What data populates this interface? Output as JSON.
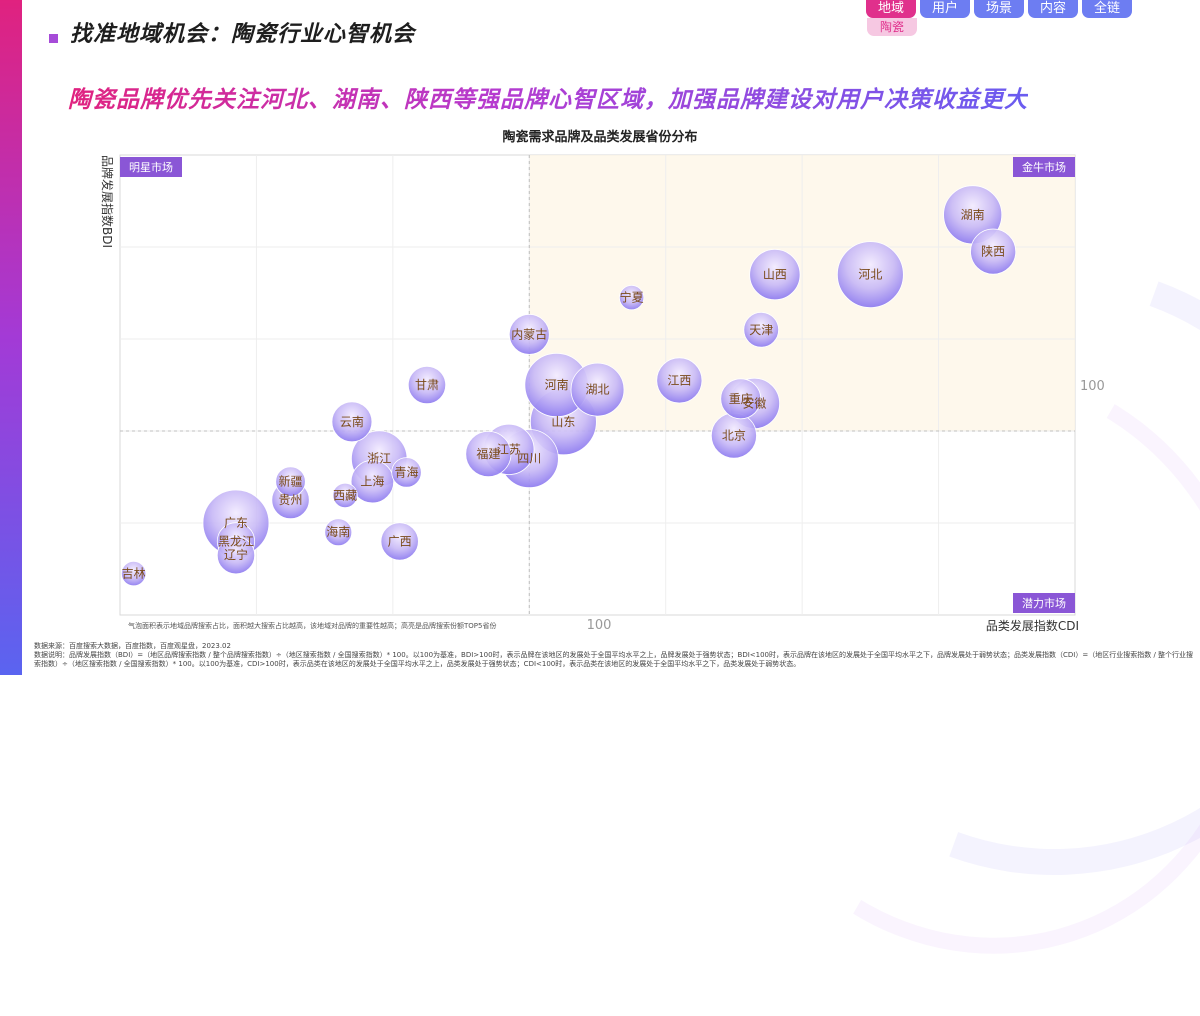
{
  "header": {
    "title": "找准地域机会：陶瓷行业心智机会",
    "headline": "陶瓷品牌优先关注河北、湖南、陕西等强品牌心智区域，加强品牌建设对用户决策收益更大"
  },
  "nav": {
    "tabs": [
      {
        "label": "地域",
        "active": true
      },
      {
        "label": "用户",
        "active": false
      },
      {
        "label": "场景",
        "active": false
      },
      {
        "label": "内容",
        "active": false
      },
      {
        "label": "全链",
        "active": false
      }
    ],
    "sub_label": "陶瓷"
  },
  "chart_data": {
    "type": "scatter",
    "title": "陶瓷需求品牌及品类发展省份分布",
    "xlabel": "品类发展指数CDI",
    "ylabel": "品牌发展指数BDI",
    "x_ref": 100,
    "y_ref": 100,
    "x_ref_label": "100",
    "y_ref_label": "100",
    "quadrants": {
      "top_left": "明星市场",
      "top_right": "金牛市场",
      "bottom_right": "潜力市场"
    },
    "grid": true,
    "points": [
      {
        "name": "湖南",
        "x": 132.5,
        "y": 123.5,
        "size": 0.85
      },
      {
        "name": "陕西",
        "x": 134,
        "y": 119.5,
        "size": 0.6
      },
      {
        "name": "河北",
        "x": 125,
        "y": 117,
        "size": 1.0
      },
      {
        "name": "山西",
        "x": 118,
        "y": 117,
        "size": 0.7
      },
      {
        "name": "宁夏",
        "x": 107.5,
        "y": 114.5,
        "size": 0.2
      },
      {
        "name": "天津",
        "x": 117,
        "y": 111,
        "size": 0.4
      },
      {
        "name": "内蒙古",
        "x": 100,
        "y": 110.5,
        "size": 0.5
      },
      {
        "name": "江西",
        "x": 111,
        "y": 105.5,
        "size": 0.6
      },
      {
        "name": "河南",
        "x": 102,
        "y": 105,
        "size": 0.95
      },
      {
        "name": "湖北",
        "x": 105,
        "y": 104.5,
        "size": 0.75
      },
      {
        "name": "甘肃",
        "x": 92.5,
        "y": 105,
        "size": 0.45
      },
      {
        "name": "重庆",
        "x": 115.5,
        "y": 103.5,
        "size": 0.5
      },
      {
        "name": "安徽",
        "x": 116.5,
        "y": 103,
        "size": 0.7
      },
      {
        "name": "山东",
        "x": 102.5,
        "y": 101,
        "size": 1.0
      },
      {
        "name": "云南",
        "x": 87,
        "y": 101,
        "size": 0.5
      },
      {
        "name": "北京",
        "x": 115,
        "y": 99.5,
        "size": 0.6
      },
      {
        "name": "江苏",
        "x": 98.5,
        "y": 98,
        "size": 0.7
      },
      {
        "name": "福建",
        "x": 97,
        "y": 97.5,
        "size": 0.6
      },
      {
        "name": "四川",
        "x": 100,
        "y": 97,
        "size": 0.85
      },
      {
        "name": "浙江",
        "x": 89,
        "y": 97,
        "size": 0.8
      },
      {
        "name": "青海",
        "x": 91,
        "y": 95.5,
        "size": 0.3
      },
      {
        "name": "上海",
        "x": 88.5,
        "y": 94.5,
        "size": 0.55
      },
      {
        "name": "新疆",
        "x": 82.5,
        "y": 94.5,
        "size": 0.3
      },
      {
        "name": "西藏",
        "x": 86.5,
        "y": 93,
        "size": 0.2
      },
      {
        "name": "贵州",
        "x": 82.5,
        "y": 92.5,
        "size": 0.45
      },
      {
        "name": "广东",
        "x": 78.5,
        "y": 90,
        "size": 1.0
      },
      {
        "name": "海南",
        "x": 86,
        "y": 89,
        "size": 0.25
      },
      {
        "name": "黑龙江",
        "x": 78.5,
        "y": 88,
        "size": 0.45
      },
      {
        "name": "广西",
        "x": 90.5,
        "y": 88,
        "size": 0.45
      },
      {
        "name": "辽宁",
        "x": 78.5,
        "y": 86.5,
        "size": 0.45
      },
      {
        "name": "吉林",
        "x": 71,
        "y": 84.5,
        "size": 0.2
      }
    ]
  },
  "footnotes": {
    "chart_note": "气泡面积表示地域品牌搜索占比，面积越大搜索占比越高，该地域对品牌的重要性越高；高亮是品牌搜索份额TOP5省份",
    "source": "数据来源：百度搜索大数据，百度指数，百度观星盘，2023.02",
    "explain": "数据说明：品牌发展指数（BDI）=（地区品牌搜索指数 / 整个品牌搜索指数）÷（地区搜索指数 / 全国搜索指数）* 100。以100为基准，BDI>100时，表示品牌在该地区的发展处于全国平均水平之上，品牌发展处于强势状态；BDI<100时，表示品牌在该地区的发展处于全国平均水平之下，品牌发展处于弱势状态；品类发展指数（CDI）=（地区行业搜索指数 / 整个行业搜索指数）÷（地区搜索指数 / 全国搜索指数）* 100。以100为基准，CDI>100时，表示品类在该地区的发展处于全国平均水平之上，品类发展处于强势状态；CDI<100时，表示品类在该地区的发展处于全国平均水平之下，品类发展处于弱势状态。"
  }
}
